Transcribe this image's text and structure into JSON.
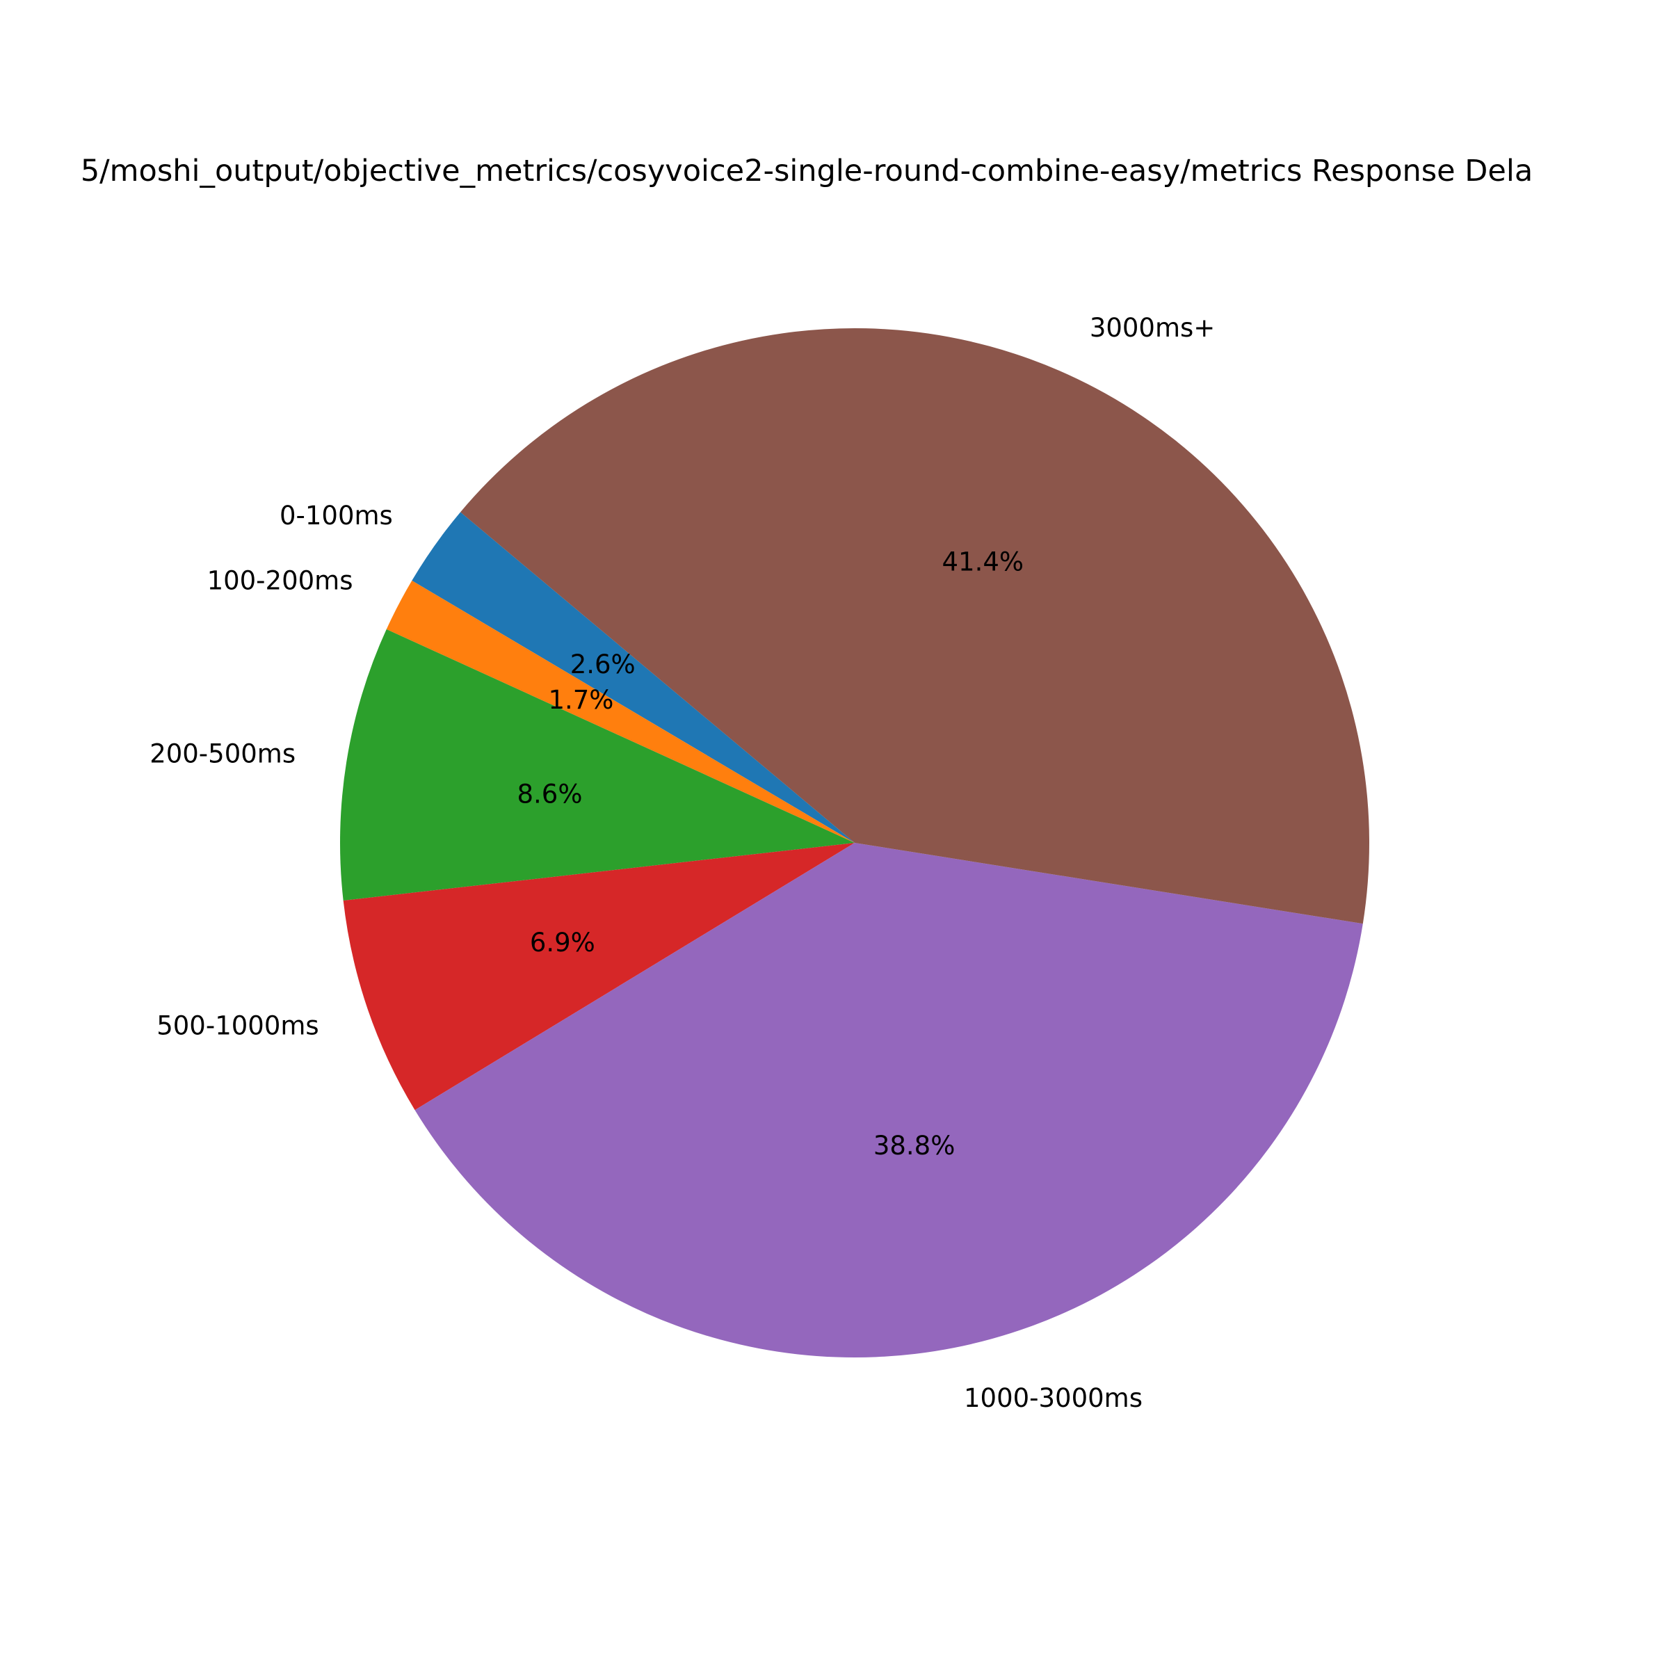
{
  "chart_data": {
    "type": "pie",
    "title": "5/moshi_output/objective_metrics/cosyvoice2-single-round-combine-easy/metrics Response Dela",
    "categories": [
      "0-100ms",
      "100-200ms",
      "200-500ms",
      "500-1000ms",
      "1000-3000ms",
      "3000ms+"
    ],
    "values": [
      2.6,
      1.7,
      8.6,
      6.9,
      38.8,
      41.4
    ],
    "value_labels": [
      "2.6%",
      "1.7%",
      "8.6%",
      "6.9%",
      "38.8%",
      "41.4%"
    ],
    "colors": [
      "#1f77b4",
      "#ff7f0e",
      "#2ca02c",
      "#d62728",
      "#9467bd",
      "#8c564b"
    ],
    "start_angle_deg": 140,
    "direction": "counterclockwise"
  }
}
